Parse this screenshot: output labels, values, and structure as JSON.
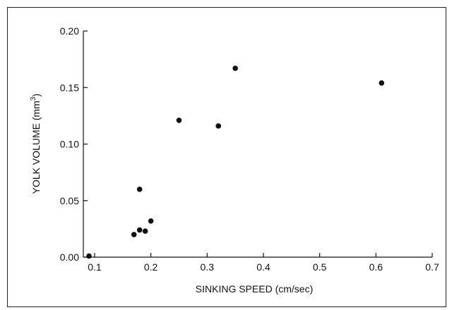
{
  "chart_data": {
    "type": "scatter",
    "title": "",
    "xlabel": "SINKING SPEED (cm/sec)",
    "ylabel_main": "YOLK VOLUME (mm",
    "ylabel_sup": "3",
    "ylabel_close": ")",
    "xlim": [
      0.08,
      0.7
    ],
    "ylim": [
      0.0,
      0.2
    ],
    "x_ticks": [
      0.1,
      0.2,
      0.3,
      0.4,
      0.5,
      0.6,
      0.7
    ],
    "x_tick_labels": [
      "0.1",
      "0.2",
      "0.3",
      "0.4",
      "0.5",
      "0.6",
      "0.7"
    ],
    "y_ticks": [
      0.0,
      0.05,
      0.1,
      0.15,
      0.2
    ],
    "y_tick_labels": [
      "0.00",
      "0.05",
      "0.10",
      "0.15",
      "0.20"
    ],
    "grid": false,
    "marker_color": "#111111",
    "points": [
      {
        "x": 0.09,
        "y": 0.001
      },
      {
        "x": 0.17,
        "y": 0.02
      },
      {
        "x": 0.18,
        "y": 0.024
      },
      {
        "x": 0.18,
        "y": 0.06
      },
      {
        "x": 0.19,
        "y": 0.023
      },
      {
        "x": 0.2,
        "y": 0.032
      },
      {
        "x": 0.25,
        "y": 0.121
      },
      {
        "x": 0.32,
        "y": 0.116
      },
      {
        "x": 0.35,
        "y": 0.167
      },
      {
        "x": 0.61,
        "y": 0.154
      }
    ]
  }
}
